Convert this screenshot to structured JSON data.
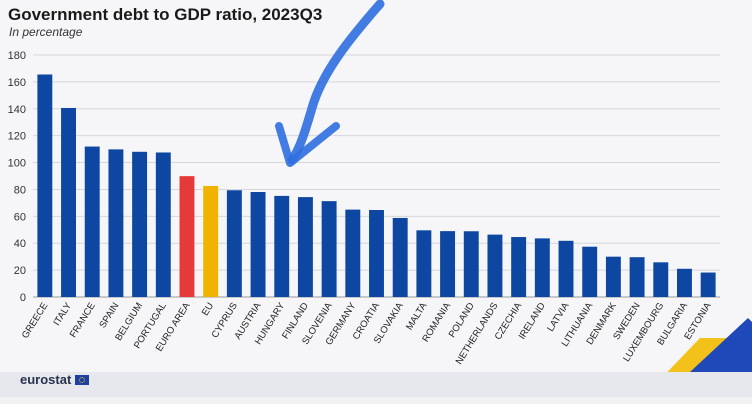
{
  "chart_data": {
    "type": "bar",
    "title": "Government debt to GDP ratio, 2023Q3",
    "subtitle": "In percentage",
    "categories": [
      "GREECE",
      "ITALY",
      "FRANCE",
      "SPAIN",
      "BELGIUM",
      "PORTUGAL",
      "EURO AREA",
      "EU",
      "CYPRUS",
      "AUSTRIA",
      "HUNGARY",
      "FINLAND",
      "SLOVENIA",
      "GERMANY",
      "CROATIA",
      "SLOVAKIA",
      "MALTA",
      "ROMANIA",
      "POLAND",
      "NETHERLANDS",
      "CZECHIA",
      "IRELAND",
      "LATVIA",
      "LITHUANIA",
      "DENMARK",
      "SWEDEN",
      "LUXEMBOURG",
      "BULGARIA",
      "ESTONIA"
    ],
    "values": [
      165.5,
      140.6,
      111.9,
      109.8,
      108.0,
      107.5,
      89.9,
      82.6,
      79.4,
      78.1,
      75.2,
      74.3,
      71.3,
      65.0,
      64.7,
      58.8,
      49.6,
      49.0,
      48.9,
      46.4,
      44.6,
      43.6,
      41.8,
      37.4,
      30.0,
      29.6,
      25.8,
      21.0,
      18.2
    ],
    "ylim": [
      0,
      180
    ],
    "yticks": [
      0,
      20,
      40,
      60,
      80,
      100,
      120,
      140,
      160,
      180
    ],
    "grid": true,
    "colors": {
      "default": "#0e47a1",
      "EURO AREA": "#e63a3a",
      "EU": "#f0b400"
    }
  },
  "brand": "eurostat",
  "annotation_arrow_color": "#2f6fe0"
}
